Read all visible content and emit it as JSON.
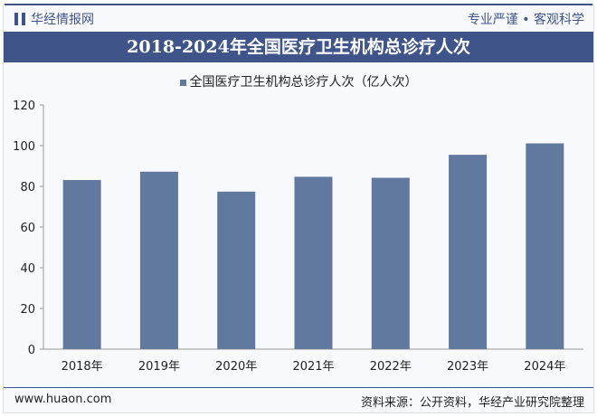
{
  "header": {
    "brand": "华经情报网",
    "slogan": "专业严谨 • 客观科学"
  },
  "title": "2018-2024年全国医疗卫生机构总诊疗人次",
  "footer": {
    "website": "www.huaon.com",
    "source": "资料来源：公开资料，华经产业研究院整理"
  },
  "chart_data": {
    "type": "bar",
    "title": "2018-2024年全国医疗卫生机构总诊疗人次",
    "categories": [
      "2018年",
      "2019年",
      "2020年",
      "2021年",
      "2022年",
      "2023年",
      "2024年"
    ],
    "series": [
      {
        "name": "全国医疗卫生机构总诊疗人次（亿人次）",
        "values": [
          83.1,
          87.2,
          77.4,
          84.7,
          84.2,
          95.5,
          101.1
        ],
        "color": "#61789f"
      }
    ],
    "yticks": [
      "0",
      "20",
      "40",
      "60",
      "80",
      "100",
      "120"
    ],
    "ylim": [
      0,
      120
    ],
    "legend": "top",
    "grid": false
  }
}
